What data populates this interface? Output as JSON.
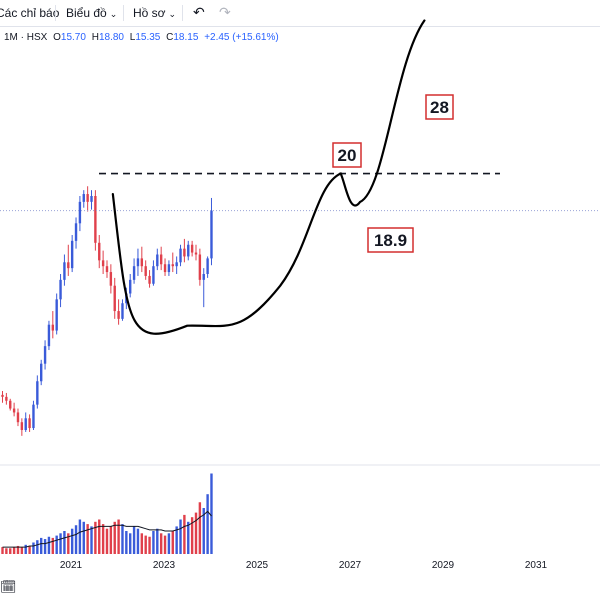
{
  "toolbar": {
    "indicators_label": "Các chỉ báo",
    "chart_label": "Biểu đồ",
    "profile_label": "Hồ sơ",
    "undo_icon": "undo-icon",
    "redo_icon": "redo-icon"
  },
  "legend": {
    "symbol": "1M · HSX",
    "open_label": "O",
    "open": "15.70",
    "high_label": "H",
    "high": "18.80",
    "low_label": "L",
    "low": "15.35",
    "close_label": "C",
    "close": "18.15",
    "change": "+2.45 (+15.61%)"
  },
  "annotations": {
    "target_high": "28",
    "resistance": "20",
    "pullback": "18.9"
  },
  "colors": {
    "up": "#3a5bd9",
    "down": "#e0404b",
    "box_border": "#d32f2f",
    "price_line": "#9aa3d8",
    "volume_ma": "#131722"
  },
  "chart_data": {
    "type": "candlestick",
    "symbol": "1M · HSX",
    "interval": "1M",
    "xticks": [
      "2021",
      "2023",
      "2025",
      "2027",
      "2029",
      "2031"
    ],
    "ohlc": [
      [
        8.7,
        8.9,
        8.3,
        8.6
      ],
      [
        8.6,
        8.8,
        8.2,
        8.4
      ],
      [
        8.4,
        8.5,
        7.9,
        8.0
      ],
      [
        8.0,
        8.3,
        7.6,
        7.8
      ],
      [
        7.8,
        8.0,
        7.1,
        7.3
      ],
      [
        7.3,
        7.5,
        6.6,
        6.9
      ],
      [
        6.9,
        7.8,
        6.8,
        7.5
      ],
      [
        7.5,
        7.7,
        6.8,
        7.0
      ],
      [
        7.0,
        8.4,
        6.9,
        8.2
      ],
      [
        8.2,
        9.7,
        8.0,
        9.4
      ],
      [
        9.4,
        10.5,
        9.2,
        10.3
      ],
      [
        10.3,
        11.5,
        10.0,
        11.2
      ],
      [
        11.2,
        12.5,
        11.0,
        12.3
      ],
      [
        12.3,
        13.0,
        11.6,
        12.0
      ],
      [
        12.0,
        13.9,
        11.8,
        13.6
      ],
      [
        13.6,
        14.9,
        13.2,
        14.6
      ],
      [
        14.6,
        15.9,
        14.3,
        15.5
      ],
      [
        15.5,
        16.4,
        14.8,
        15.2
      ],
      [
        15.2,
        16.9,
        15.0,
        16.6
      ],
      [
        16.6,
        17.8,
        16.2,
        17.5
      ],
      [
        17.5,
        18.9,
        17.1,
        18.6
      ],
      [
        18.6,
        19.2,
        18.3,
        19.0
      ],
      [
        19.0,
        19.4,
        18.1,
        18.6
      ],
      [
        18.6,
        19.2,
        18.2,
        18.9
      ],
      [
        18.9,
        19.2,
        16.1,
        16.5
      ],
      [
        16.5,
        16.9,
        15.2,
        15.6
      ],
      [
        15.6,
        16.1,
        14.9,
        15.3
      ],
      [
        15.3,
        15.6,
        14.7,
        15.0
      ],
      [
        15.0,
        15.4,
        13.9,
        14.3
      ],
      [
        14.3,
        14.7,
        12.6,
        13.0
      ],
      [
        13.0,
        13.6,
        12.3,
        12.6
      ],
      [
        12.6,
        13.6,
        12.5,
        13.4
      ],
      [
        13.4,
        14.2,
        13.1,
        13.9
      ],
      [
        13.9,
        14.9,
        13.7,
        14.6
      ],
      [
        14.6,
        15.7,
        14.4,
        15.3
      ],
      [
        15.3,
        16.2,
        14.8,
        15.7
      ],
      [
        15.7,
        16.3,
        15.0,
        15.3
      ],
      [
        15.3,
        15.6,
        14.6,
        14.8
      ],
      [
        14.8,
        15.1,
        14.2,
        14.4
      ],
      [
        14.4,
        15.6,
        14.3,
        15.3
      ],
      [
        15.3,
        16.2,
        15.1,
        15.9
      ],
      [
        15.9,
        16.3,
        15.1,
        15.4
      ],
      [
        15.4,
        15.7,
        14.8,
        15.0
      ],
      [
        15.0,
        15.6,
        14.8,
        15.4
      ],
      [
        15.4,
        16.0,
        15.0,
        15.3
      ],
      [
        15.3,
        15.8,
        14.9,
        15.5
      ],
      [
        15.5,
        16.4,
        15.3,
        16.2
      ],
      [
        16.2,
        16.7,
        15.5,
        15.8
      ],
      [
        15.8,
        16.6,
        15.6,
        16.4
      ],
      [
        16.4,
        16.6,
        15.8,
        16.0
      ],
      [
        16.0,
        16.4,
        15.6,
        15.9
      ],
      [
        15.9,
        16.2,
        14.3,
        14.6
      ],
      [
        14.6,
        15.2,
        13.2,
        14.9
      ],
      [
        14.9,
        15.8,
        14.7,
        15.7
      ],
      [
        15.7,
        18.8,
        15.35,
        18.15
      ]
    ],
    "volume": [
      6,
      5,
      5,
      6,
      7,
      6,
      8,
      7,
      10,
      12,
      14,
      13,
      15,
      14,
      16,
      18,
      20,
      18,
      22,
      25,
      30,
      28,
      26,
      24,
      28,
      30,
      26,
      22,
      24,
      28,
      30,
      26,
      20,
      18,
      24,
      22,
      18,
      16,
      15,
      20,
      22,
      18,
      16,
      18,
      20,
      24,
      30,
      34,
      28,
      32,
      36,
      45,
      40,
      52,
      70
    ],
    "volume_ma": [
      6,
      6,
      6,
      6,
      6,
      6,
      6,
      7,
      7,
      8,
      9,
      9,
      10,
      11,
      12,
      13,
      14,
      15,
      16,
      17,
      19,
      20,
      21,
      22,
      23,
      24,
      24,
      24,
      24,
      25,
      25,
      25,
      24,
      24,
      24,
      24,
      23,
      22,
      21,
      21,
      21,
      21,
      20,
      20,
      20,
      21,
      22,
      24,
      25,
      27,
      29,
      32,
      34,
      37,
      33
    ],
    "projection": [
      {
        "x": 2021.9,
        "y": 19.0
      },
      {
        "x": 2023.5,
        "y": 12.3
      },
      {
        "x": 2025.5,
        "y": 14.3
      },
      {
        "x": 2026.8,
        "y": 20.0
      },
      {
        "x": 2027.0,
        "y": 18.9
      },
      {
        "x": 2028.6,
        "y": 28.0
      }
    ],
    "resistance_level": 20,
    "annotations": [
      "28",
      "20",
      "18.9"
    ]
  }
}
